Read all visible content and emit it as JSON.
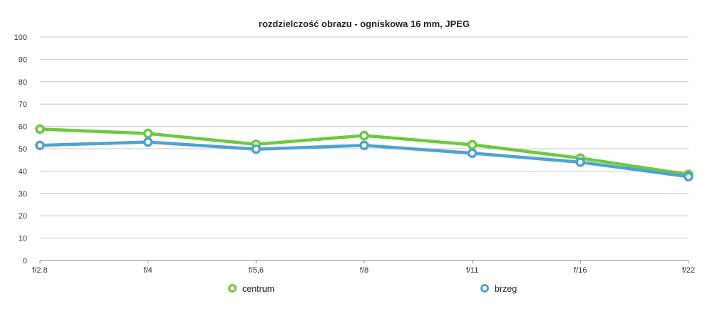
{
  "chart_data": {
    "type": "line",
    "title": "rozdzielczość obrazu - ogniskowa 16 mm, JPEG",
    "xlabel": "",
    "ylabel": "",
    "categories": [
      "f/2.8",
      "f/4",
      "f/5,6",
      "f/8",
      "f/11",
      "f/16",
      "f/22"
    ],
    "ylim": [
      0,
      100
    ],
    "yticks": [
      "0",
      "10",
      "20",
      "30",
      "40",
      "50",
      "60",
      "70",
      "80",
      "90",
      "100"
    ],
    "grid": true,
    "legend_position": "bottom",
    "series": [
      {
        "name": "centrum",
        "color": "#6cc93f",
        "values": [
          58.8,
          56.8,
          52.0,
          55.9,
          51.8,
          45.8,
          38.5
        ]
      },
      {
        "name": "brzeg",
        "color": "#4fa3d1",
        "values": [
          51.5,
          53.0,
          49.8,
          51.5,
          48.0,
          44.0,
          37.5
        ]
      }
    ]
  }
}
